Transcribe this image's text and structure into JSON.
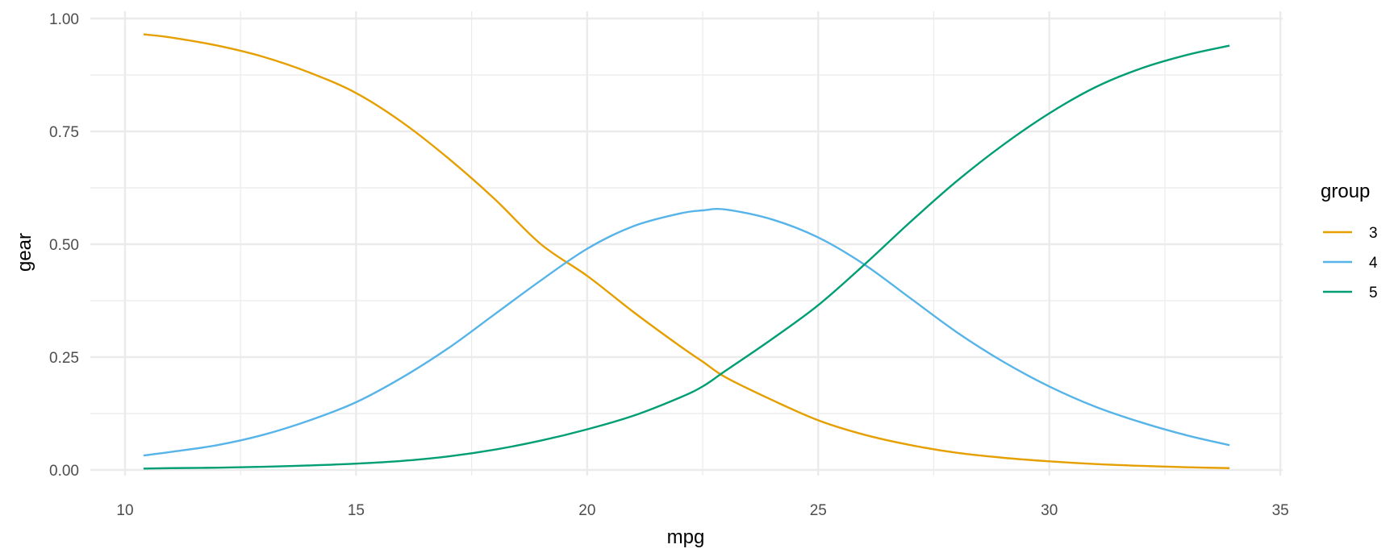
{
  "chart_data": {
    "type": "line",
    "xlabel": "mpg",
    "ylabel": "gear",
    "xlim": [
      9.25,
      35.05
    ],
    "ylim": [
      -0.01,
      1.0
    ],
    "x_ticks": [
      10,
      15,
      20,
      25,
      30,
      35
    ],
    "x_tick_labels": [
      "10",
      "15",
      "20",
      "25",
      "30",
      "35"
    ],
    "y_ticks": [
      0,
      0.25,
      0.5,
      0.75,
      1.0
    ],
    "y_tick_labels": [
      "0.00",
      "0.25",
      "0.50",
      "0.75",
      "1.00"
    ],
    "grid": true,
    "legend": {
      "title": "group",
      "position": "right"
    },
    "x": [
      10.4,
      11.0,
      12.0,
      13.0,
      14.0,
      15.0,
      16.0,
      17.0,
      18.0,
      19.0,
      20.0,
      21.0,
      22.0,
      22.5,
      23.0,
      24.0,
      25.0,
      26.0,
      27.0,
      28.0,
      29.0,
      30.0,
      31.0,
      32.0,
      33.0,
      33.9
    ],
    "series": [
      {
        "name": "3",
        "color": "#E69F00",
        "values": [
          0.965,
          0.958,
          0.94,
          0.915,
          0.88,
          0.835,
          0.77,
          0.69,
          0.6,
          0.5,
          0.43,
          0.35,
          0.275,
          0.24,
          0.205,
          0.155,
          0.11,
          0.078,
          0.055,
          0.038,
          0.027,
          0.019,
          0.013,
          0.009,
          0.006,
          0.004
        ]
      },
      {
        "name": "4",
        "color": "#56B4E9",
        "values": [
          0.032,
          0.04,
          0.055,
          0.078,
          0.11,
          0.15,
          0.205,
          0.27,
          0.345,
          0.42,
          0.49,
          0.54,
          0.568,
          0.575,
          0.577,
          0.555,
          0.515,
          0.455,
          0.38,
          0.305,
          0.24,
          0.185,
          0.14,
          0.105,
          0.076,
          0.055
        ]
      },
      {
        "name": "5",
        "color": "#009E73",
        "values": [
          0.003,
          0.004,
          0.005,
          0.007,
          0.01,
          0.014,
          0.02,
          0.03,
          0.045,
          0.065,
          0.09,
          0.12,
          0.16,
          0.185,
          0.22,
          0.29,
          0.365,
          0.455,
          0.55,
          0.64,
          0.72,
          0.79,
          0.848,
          0.89,
          0.92,
          0.94
        ]
      }
    ]
  }
}
